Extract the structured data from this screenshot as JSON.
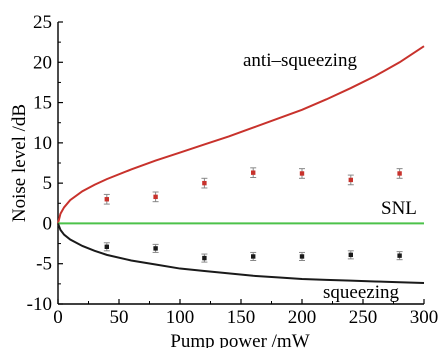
{
  "chart_data": {
    "type": "scatter",
    "title": "",
    "xlabel": "Pump power /mW",
    "ylabel": "Noise level /dB",
    "xlim": [
      0,
      300
    ],
    "ylim": [
      -10,
      25
    ],
    "xticks": [
      0,
      50,
      100,
      150,
      200,
      250,
      300
    ],
    "yticks": [
      -10,
      -5,
      0,
      5,
      10,
      15,
      20,
      25
    ],
    "grid": false,
    "annotations": [
      "anti–squeezing",
      "SNL",
      "squeezing"
    ],
    "series": [
      {
        "name": "anti–squeezing",
        "kind": "line",
        "color": "#c8322c",
        "x": [
          0,
          2,
          5,
          10,
          20,
          30,
          40,
          60,
          80,
          100,
          120,
          140,
          160,
          180,
          200,
          220,
          240,
          260,
          280,
          300
        ],
        "y": [
          0.0,
          1.2,
          2.0,
          2.9,
          4.0,
          4.8,
          5.5,
          6.7,
          7.8,
          8.8,
          9.8,
          10.8,
          11.9,
          13.0,
          14.1,
          15.4,
          16.8,
          18.3,
          20.0,
          22.0
        ]
      },
      {
        "name": "SNL",
        "kind": "line",
        "color": "#4cc24a",
        "x": [
          0,
          300
        ],
        "y": [
          0,
          0
        ]
      },
      {
        "name": "squeezing",
        "kind": "line",
        "color": "#1a1a1a",
        "x": [
          0,
          2,
          5,
          10,
          20,
          30,
          40,
          60,
          80,
          100,
          120,
          140,
          160,
          180,
          200,
          220,
          240,
          260,
          280,
          300
        ],
        "y": [
          0.0,
          -0.8,
          -1.4,
          -2.0,
          -2.8,
          -3.4,
          -3.9,
          -4.6,
          -5.1,
          -5.6,
          -5.9,
          -6.2,
          -6.5,
          -6.7,
          -6.9,
          -7.0,
          -7.1,
          -7.2,
          -7.3,
          -7.4
        ]
      },
      {
        "name": "anti–squeezing data",
        "kind": "points",
        "color": "#c8322c",
        "x": [
          40,
          80,
          120,
          160,
          200,
          240,
          280
        ],
        "y": [
          3.0,
          3.3,
          5.0,
          6.3,
          6.2,
          5.4,
          6.2
        ],
        "err": [
          0.6,
          0.6,
          0.6,
          0.6,
          0.6,
          0.6,
          0.6
        ]
      },
      {
        "name": "squeezing data",
        "kind": "points",
        "color": "#1a1a1a",
        "x": [
          40,
          80,
          120,
          160,
          200,
          240,
          280
        ],
        "y": [
          -2.9,
          -3.1,
          -4.3,
          -4.1,
          -4.1,
          -3.9,
          -4.0
        ],
        "err": [
          0.5,
          0.5,
          0.5,
          0.5,
          0.5,
          0.5,
          0.5
        ]
      }
    ]
  }
}
